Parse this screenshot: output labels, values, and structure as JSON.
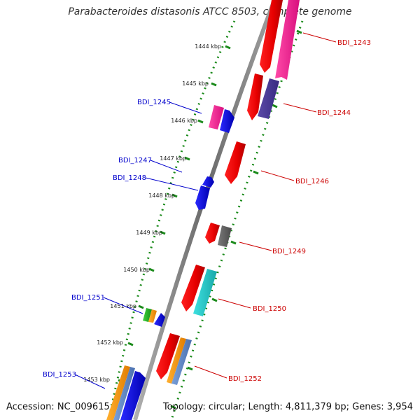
{
  "title": "Parabacteroides distasonis ATCC 8503, complete genome",
  "footer": {
    "accession": "Accession: NC_009615",
    "summary": "Topology: circular; Length: 4,811,379 bp; Genes: 3,954"
  },
  "ticks": [
    "1444 kbp",
    "1445 kbp",
    "1446 kbp",
    "1447 kbp",
    "1448 kbp",
    "1449 kbp",
    "1450 kbp",
    "1451 kbp",
    "1452 kbp",
    "1453 kbp"
  ],
  "genes_left": [
    "BDI_1245",
    "BDI_1247",
    "BDI_1248",
    "BDI_1251",
    "BDI_1253"
  ],
  "genes_right": [
    "BDI_1243",
    "BDI_1244",
    "BDI_1246",
    "BDI_1249",
    "BDI_1250",
    "BDI_1252"
  ],
  "colors": {
    "left_label": "#0000cc",
    "right_label": "#cc0000",
    "backbone": "#888888",
    "dotted_track": "#1a8a1a"
  }
}
